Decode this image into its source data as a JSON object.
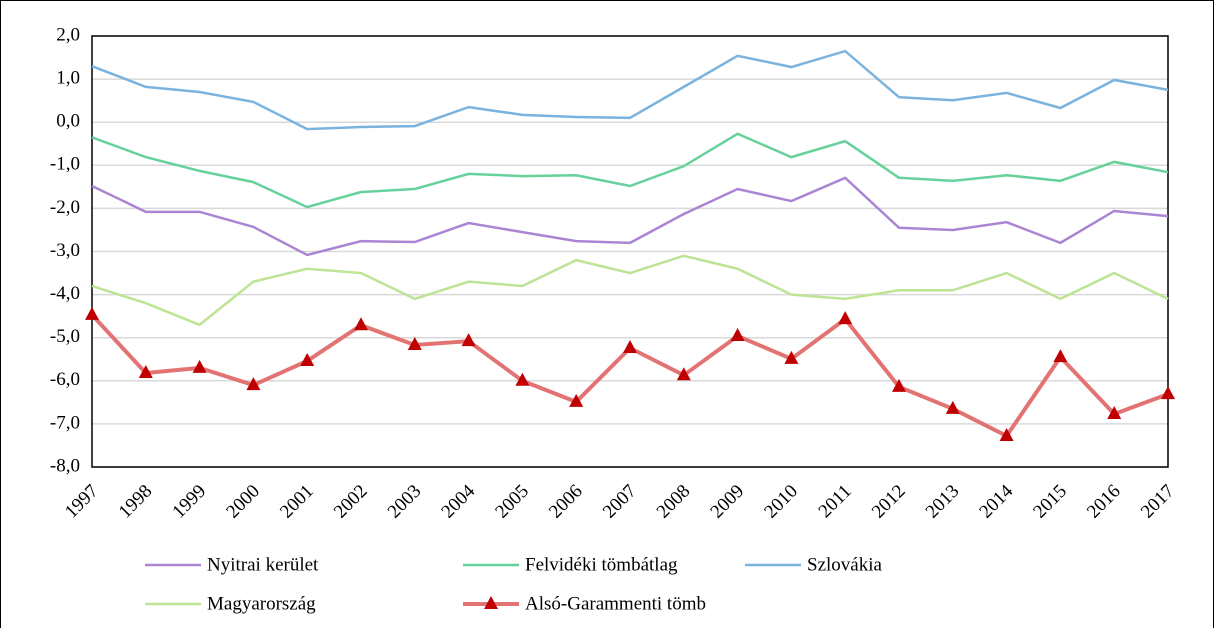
{
  "chart_data": {
    "type": "line",
    "categories": [
      "1997",
      "1998",
      "1999",
      "2000",
      "2001",
      "2002",
      "2003",
      "2004",
      "2005",
      "2006",
      "2007",
      "2008",
      "2009",
      "2010",
      "2011",
      "2012",
      "2013",
      "2014",
      "2015",
      "2016",
      "2017"
    ],
    "series": [
      {
        "name": "Nyitrai kerület",
        "color": "#a985d3",
        "values": [
          -1.48,
          -2.08,
          -2.08,
          -2.43,
          -3.08,
          -2.76,
          -2.78,
          -2.34,
          -2.55,
          -2.76,
          -2.8,
          -2.13,
          -1.55,
          -1.83,
          -1.29,
          -2.45,
          -2.5,
          -2.32,
          -2.8,
          -2.06,
          -2.18
        ]
      },
      {
        "name": "Felvidéki tömbátlag",
        "color": "#66d19a",
        "values": [
          -0.35,
          -0.81,
          -1.13,
          -1.39,
          -1.97,
          -1.62,
          -1.55,
          -1.2,
          -1.25,
          -1.23,
          -1.48,
          -1.02,
          -0.27,
          -0.81,
          -0.44,
          -1.29,
          -1.36,
          -1.23,
          -1.36,
          -0.92,
          -1.16
        ]
      },
      {
        "name": "Szlovákia",
        "color": "#7ab3de",
        "values": [
          1.3,
          0.82,
          0.7,
          0.47,
          -0.16,
          -0.11,
          -0.09,
          0.35,
          0.17,
          0.12,
          0.1,
          0.82,
          1.54,
          1.28,
          1.65,
          0.58,
          0.51,
          0.68,
          0.33,
          0.98,
          0.75
        ]
      },
      {
        "name": "Magyarország",
        "color": "#bde395",
        "values": [
          -3.8,
          -4.2,
          -4.7,
          -3.7,
          -3.4,
          -3.5,
          -4.1,
          -3.7,
          -3.8,
          -3.2,
          -3.5,
          -3.1,
          -3.4,
          -4.0,
          -4.1,
          -3.9,
          -3.9,
          -3.5,
          -4.1,
          -3.5,
          -4.1
        ]
      },
      {
        "name": "Alsó-Garammenti tömb",
        "color": "#e37373",
        "marker": "triangle",
        "marker_color": "#c00000",
        "values": [
          -4.47,
          -5.82,
          -5.7,
          -6.1,
          -5.54,
          -4.71,
          -5.17,
          -5.08,
          -6.0,
          -6.49,
          -5.24,
          -5.87,
          -4.96,
          -5.49,
          -4.57,
          -6.14,
          -6.65,
          -7.28,
          -5.45,
          -6.77,
          -6.31
        ]
      }
    ],
    "ylim": [
      -8,
      2
    ],
    "yticks": [
      {
        "value": -8,
        "label": "-8,0"
      },
      {
        "value": -7,
        "label": "-7,0"
      },
      {
        "value": -6,
        "label": "-6,0"
      },
      {
        "value": -5,
        "label": "-5,0"
      },
      {
        "value": -4,
        "label": "-4,0"
      },
      {
        "value": -3,
        "label": "-3,0"
      },
      {
        "value": -2,
        "label": "-2,0"
      },
      {
        "value": -1,
        "label": "-1,0"
      },
      {
        "value": 0,
        "label": "0,0"
      },
      {
        "value": 1,
        "label": "1,0"
      },
      {
        "value": 2,
        "label": "2,0"
      }
    ],
    "grid": true
  }
}
